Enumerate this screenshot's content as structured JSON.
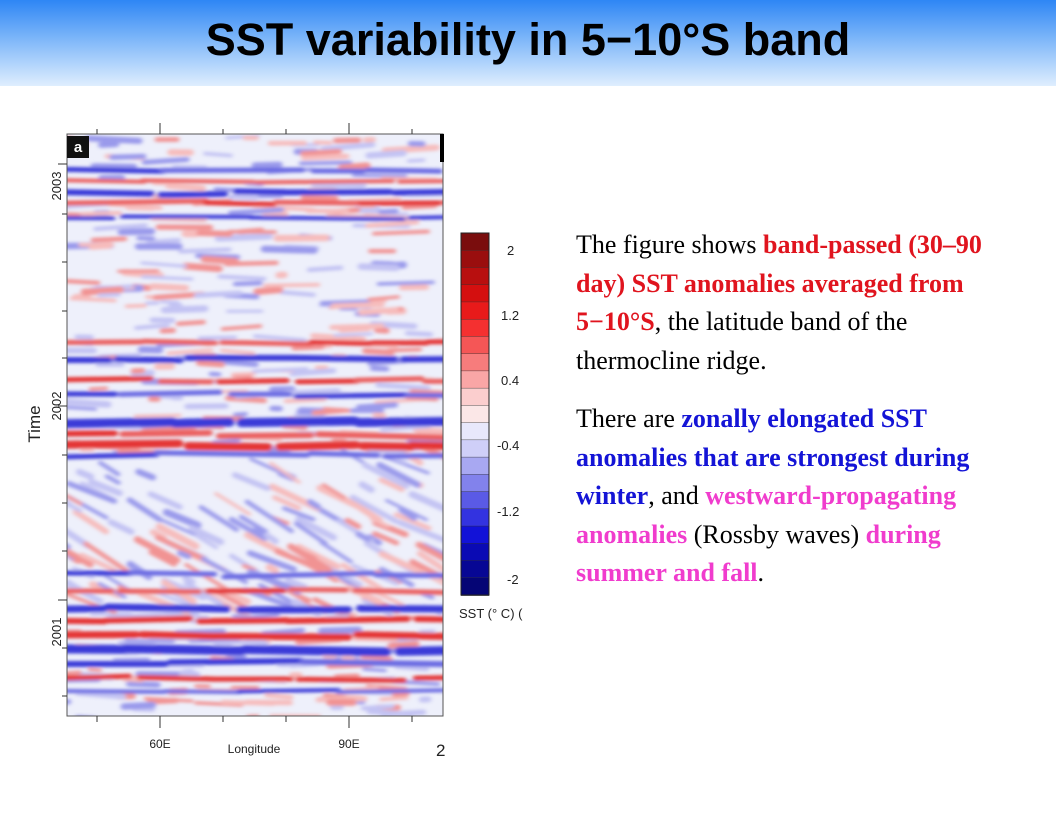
{
  "header": {
    "title": "SST variability in 5−10°S band"
  },
  "figure": {
    "panel_label": "a",
    "y_axis_title": "Time",
    "y_ticks": [
      "2003",
      "2002",
      "2001"
    ],
    "x_axis_title": "Longitude",
    "x_ticks": [
      "60E",
      "90E"
    ],
    "x_tick_cut": "2",
    "colorbar_title": "SST (° C) (",
    "colorbar_ticks": [
      "2",
      "1.2",
      "0.4",
      "-0.4",
      "-1.2",
      "-2"
    ],
    "colorbar_colors": [
      "#7a0d0d",
      "#9a0e0e",
      "#b80f0f",
      "#d40f0f",
      "#e81a1a",
      "#f43030",
      "#f55656",
      "#f77c7c",
      "#f9a6a6",
      "#fbcece",
      "#fbe7e7",
      "#e8e8fb",
      "#cfcff8",
      "#a8a8f2",
      "#8282ec",
      "#5a5ae6",
      "#3333e0",
      "#1212d8",
      "#0a0ab4",
      "#070794",
      "#050575"
    ]
  },
  "caption": {
    "p1_a": "The figure shows ",
    "p1_b": "band-passed (30–90 day) SST anomalies averaged from 5−10°S",
    "p1_c": ", the latitude band of the thermocline ridge.",
    "p2_a": "There are ",
    "p2_b": "zonally elongated SST anomalies that are strongest during winter",
    "p2_c": ", and ",
    "p2_d": "westward-propagating anomalies",
    "p2_e": " (Rossby waves) ",
    "p2_f": "during summer and fall",
    "p2_g": "."
  }
}
